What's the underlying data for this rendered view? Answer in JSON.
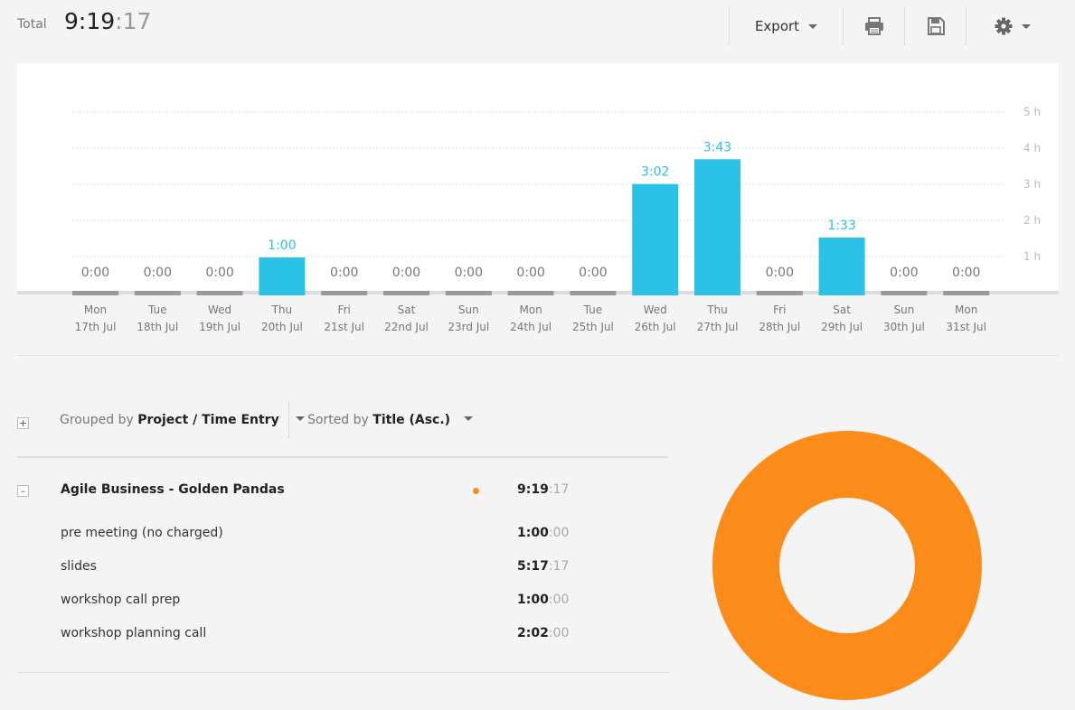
{
  "header": {
    "total_label": "Total",
    "total_hm": "9:19",
    "total_sec": ":17",
    "export_label": "Export",
    "print_icon": "print-icon",
    "save_icon": "save-icon",
    "settings_icon": "gear-icon"
  },
  "chart_data": {
    "type": "bar",
    "categories": [
      {
        "day": "Mon",
        "date": "17th Jul"
      },
      {
        "day": "Tue",
        "date": "18th Jul"
      },
      {
        "day": "Wed",
        "date": "19th Jul"
      },
      {
        "day": "Thu",
        "date": "20th Jul"
      },
      {
        "day": "Fri",
        "date": "21st Jul"
      },
      {
        "day": "Sat",
        "date": "22nd Jul"
      },
      {
        "day": "Sun",
        "date": "23rd Jul"
      },
      {
        "day": "Mon",
        "date": "24th Jul"
      },
      {
        "day": "Tue",
        "date": "25th Jul"
      },
      {
        "day": "Wed",
        "date": "26th Jul"
      },
      {
        "day": "Thu",
        "date": "27th Jul"
      },
      {
        "day": "Fri",
        "date": "28th Jul"
      },
      {
        "day": "Sat",
        "date": "29th Jul"
      },
      {
        "day": "Sun",
        "date": "30th Jul"
      },
      {
        "day": "Mon",
        "date": "31st Jul"
      }
    ],
    "labels": [
      "0:00",
      "0:00",
      "0:00",
      "1:00",
      "0:00",
      "0:00",
      "0:00",
      "0:00",
      "0:00",
      "3:02",
      "3:43",
      "0:00",
      "1:33",
      "0:00",
      "0:00"
    ],
    "values": [
      0,
      0,
      0,
      1.0,
      0,
      0,
      0,
      0,
      0,
      3.033,
      3.717,
      0,
      1.55,
      0,
      0
    ],
    "y_ticks": [
      "1 h",
      "2 h",
      "3 h",
      "4 h",
      "5 h"
    ],
    "ylim": [
      0,
      5
    ],
    "grid": true,
    "bar_color": "#2cc1e6",
    "empty_bar_color": "#999999",
    "value_label_color": "#2cc1e6",
    "zero_label_color": "#777777"
  },
  "controls": {
    "expand_all": "+",
    "group_prefix": "Grouped by",
    "group_value": "Project / Time Entry",
    "sort_prefix": "Sorted by",
    "sort_value": "Title (Asc.)"
  },
  "project": {
    "collapse": "–",
    "name": "Agile Business - Golden Pandas",
    "color": "#fb8c1a",
    "dur_hm": "9:19",
    "dur_sec": ":17",
    "entries": [
      {
        "title": "pre meeting (no charged)",
        "hm": "1:00",
        "sec": ":00"
      },
      {
        "title": "slides",
        "hm": "5:17",
        "sec": ":17"
      },
      {
        "title": "workshop call prep",
        "hm": "1:00",
        "sec": ":00"
      },
      {
        "title": "workshop planning call",
        "hm": "2:02",
        "sec": ":00"
      }
    ]
  },
  "donut": {
    "color": "#fb8c1a",
    "share_percent": 100
  }
}
